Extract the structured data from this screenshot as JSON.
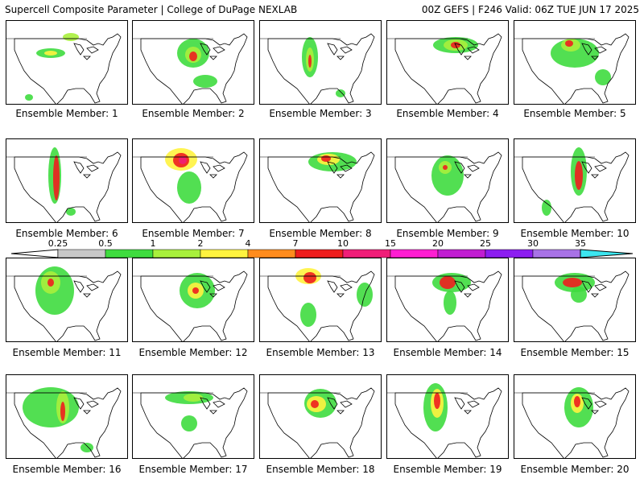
{
  "header": {
    "title": "Supercell Composite Parameter | College of DuPage NEXLAB",
    "run_info": "00Z GEFS | F246 Valid: 06Z TUE JUN 17 2025"
  },
  "colorbar": {
    "labels": [
      "0.25",
      "0.5",
      "1",
      "2",
      "4",
      "7",
      "10",
      "15",
      "20",
      "25",
      "30",
      "35"
    ],
    "colors": [
      "#ffffff",
      "#c8c8c8",
      "#3fdc3f",
      "#a8f03c",
      "#fff33f",
      "#ff8c1e",
      "#ee1e1e",
      "#f01e78",
      "#ff1ed2",
      "#c11ed2",
      "#8c1ef0",
      "#a872e6",
      "#3ce6f0"
    ]
  },
  "panels": [
    {
      "label": "Ensemble Member: 1"
    },
    {
      "label": "Ensemble Member: 2"
    },
    {
      "label": "Ensemble Member: 3"
    },
    {
      "label": "Ensemble Member: 4"
    },
    {
      "label": "Ensemble Member: 5"
    },
    {
      "label": "Ensemble Member: 6"
    },
    {
      "label": "Ensemble Member: 7"
    },
    {
      "label": "Ensemble Member: 8"
    },
    {
      "label": "Ensemble Member: 9"
    },
    {
      "label": "Ensemble Member: 10"
    },
    {
      "label": "Ensemble Member: 11"
    },
    {
      "label": "Ensemble Member: 12"
    },
    {
      "label": "Ensemble Member: 13"
    },
    {
      "label": "Ensemble Member: 14"
    },
    {
      "label": "Ensemble Member: 15"
    },
    {
      "label": "Ensemble Member: 16"
    },
    {
      "label": "Ensemble Member: 17"
    },
    {
      "label": "Ensemble Member: 18"
    },
    {
      "label": "Ensemble Member: 19"
    },
    {
      "label": "Ensemble Member: 20"
    }
  ]
}
